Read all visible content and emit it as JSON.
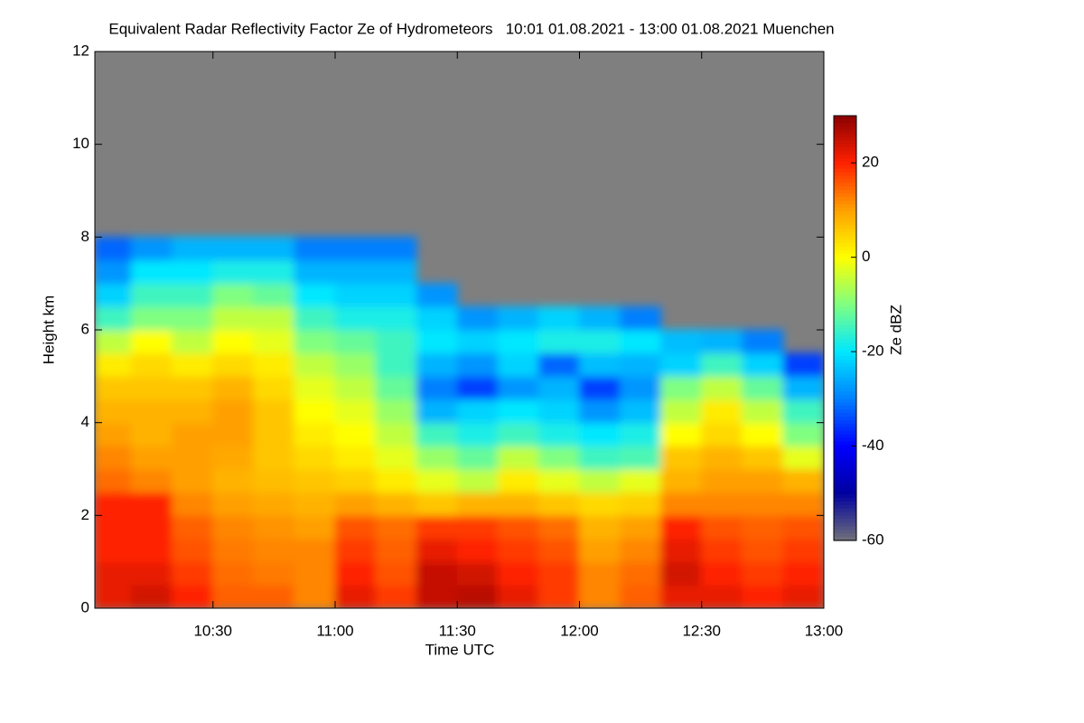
{
  "chart_data": {
    "type": "heatmap",
    "title": "Equivalent Radar Reflectivity Factor Ze of Hydrometeors   10:01 01.08.2021 - 13:00 01.08.2021 Muenchen",
    "xlabel": "Time UTC",
    "ylabel": "Height km",
    "colorbar_label": "Ze dBZ",
    "xlim": [
      601,
      780
    ],
    "xticks": [
      {
        "value": 630,
        "label": "10:30"
      },
      {
        "value": 660,
        "label": "11:00"
      },
      {
        "value": 690,
        "label": "11:30"
      },
      {
        "value": 720,
        "label": "12:00"
      },
      {
        "value": 750,
        "label": "12:30"
      },
      {
        "value": 780,
        "label": "13:00"
      }
    ],
    "ylim": [
      0,
      12
    ],
    "yticks": [
      0,
      2,
      4,
      6,
      8,
      10,
      12
    ],
    "clim": [
      -60,
      30
    ],
    "cticks": [
      -60,
      -40,
      -20,
      0,
      20
    ],
    "colormap": [
      "#70707a",
      "#0000a0",
      "#0000ff",
      "#0080ff",
      "#00e8ff",
      "#80ff80",
      "#ffff00",
      "#ffa000",
      "#ff2000",
      "#8b0000"
    ],
    "missing_color": "#7f7f7f",
    "xbins": [
      601,
      610,
      620,
      630,
      640,
      650,
      660,
      670,
      680,
      690,
      700,
      710,
      720,
      730,
      740,
      750,
      760,
      770,
      780
    ],
    "ybins": [
      0,
      0.5,
      1,
      1.5,
      2,
      2.5,
      3,
      3.5,
      4,
      4.5,
      5,
      5.5,
      6,
      6.5,
      7,
      7.5,
      8,
      8.5
    ],
    "z": [
      [
        22,
        24,
        20,
        15,
        15,
        12,
        22,
        18,
        25,
        26,
        22,
        18,
        12,
        15,
        22,
        22,
        20,
        22
      ],
      [
        22,
        22,
        18,
        14,
        13,
        12,
        20,
        16,
        25,
        24,
        20,
        18,
        12,
        14,
        24,
        20,
        18,
        20
      ],
      [
        20,
        20,
        16,
        13,
        12,
        12,
        18,
        15,
        22,
        20,
        18,
        16,
        10,
        12,
        22,
        18,
        16,
        18
      ],
      [
        20,
        20,
        15,
        12,
        11,
        10,
        16,
        14,
        18,
        18,
        16,
        14,
        8,
        10,
        20,
        16,
        15,
        16
      ],
      [
        20,
        20,
        12,
        10,
        9,
        8,
        10,
        8,
        6,
        8,
        8,
        6,
        4,
        5,
        12,
        12,
        12,
        12
      ],
      [
        14,
        12,
        10,
        8,
        7,
        6,
        5,
        2,
        -2,
        -5,
        2,
        -2,
        -5,
        -2,
        8,
        10,
        10,
        8
      ],
      [
        12,
        10,
        10,
        9,
        6,
        4,
        2,
        -2,
        -8,
        -12,
        -5,
        -10,
        -15,
        -14,
        6,
        8,
        6,
        -2
      ],
      [
        10,
        8,
        10,
        10,
        6,
        2,
        0,
        -5,
        -15,
        -18,
        -15,
        -18,
        -20,
        -18,
        0,
        4,
        0,
        -10
      ],
      [
        8,
        8,
        8,
        10,
        6,
        0,
        -2,
        -8,
        -25,
        -22,
        -20,
        -22,
        -28,
        -24,
        -5,
        2,
        -5,
        -15
      ],
      [
        6,
        6,
        6,
        8,
        4,
        -2,
        -5,
        -12,
        -30,
        -35,
        -28,
        -25,
        -35,
        -28,
        -10,
        -5,
        -12,
        -25
      ],
      [
        2,
        4,
        2,
        4,
        2,
        -5,
        -8,
        -15,
        -25,
        -28,
        -22,
        -32,
        -24,
        -25,
        -22,
        -15,
        -22,
        -35
      ],
      [
        -5,
        0,
        -5,
        0,
        -2,
        -10,
        -12,
        -15,
        -20,
        -22,
        -20,
        -18,
        -18,
        -20,
        -24,
        -25,
        -30,
        null
      ],
      [
        -15,
        -10,
        -10,
        -5,
        -5,
        -15,
        -18,
        -18,
        -22,
        -28,
        -25,
        -22,
        -25,
        -30,
        null,
        null,
        null,
        null
      ],
      [
        -22,
        -15,
        -15,
        -10,
        -12,
        -20,
        -22,
        -22,
        -28,
        null,
        null,
        null,
        null,
        null,
        null,
        null,
        null,
        null
      ],
      [
        -28,
        -20,
        -20,
        -18,
        -18,
        -25,
        -25,
        -25,
        null,
        null,
        null,
        null,
        null,
        null,
        null,
        null,
        null,
        null
      ],
      [
        -32,
        -28,
        -25,
        -25,
        -25,
        -30,
        -30,
        -30,
        null,
        null,
        null,
        null,
        null,
        null,
        null,
        null,
        null,
        null
      ],
      [
        null,
        null,
        null,
        null,
        null,
        null,
        null,
        null,
        null,
        null,
        null,
        null,
        null,
        null,
        null,
        null,
        null,
        null
      ]
    ]
  }
}
